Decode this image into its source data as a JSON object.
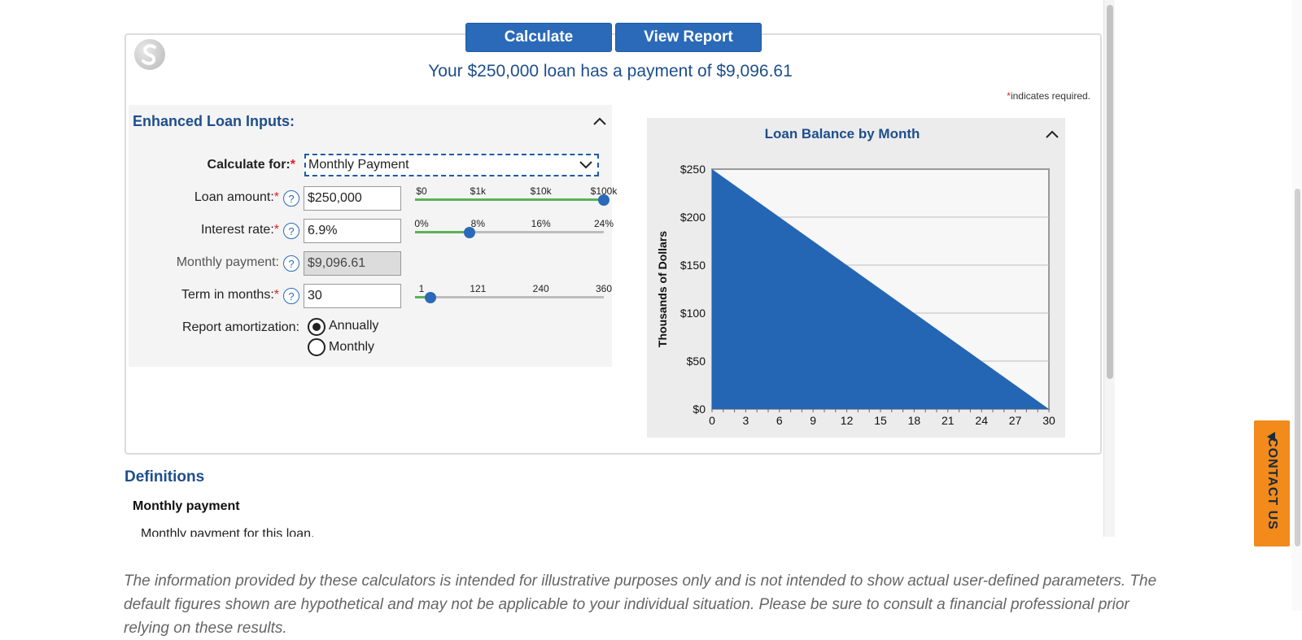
{
  "buttons": {
    "calculate": "Calculate",
    "view_report": "View Report"
  },
  "headline": "Your $250,000 loan has a payment of $9,096.61",
  "required_note": {
    "star": "*",
    "text": "indicates required."
  },
  "inputs": {
    "title": "Enhanced Loan Inputs:",
    "calculate_for": {
      "label": "Calculate for:",
      "star": "*",
      "value": "Monthly Payment"
    },
    "loan_amount": {
      "label": "Loan amount:",
      "star": "*",
      "value": "$250,000",
      "slider": {
        "ticks": [
          "$0",
          "$1k",
          "$10k",
          "$100k"
        ],
        "level": 1.0
      }
    },
    "interest_rate": {
      "label": "Interest rate:",
      "star": "*",
      "value": "6.9%",
      "slider": {
        "ticks": [
          "0%",
          "8%",
          "16%",
          "24%"
        ],
        "level": 0.2875
      }
    },
    "monthly_payment": {
      "label": "Monthly payment:",
      "value": "$9,096.61"
    },
    "term_months": {
      "label": "Term in months:",
      "star": "*",
      "value": "30",
      "slider": {
        "ticks": [
          "1",
          "121",
          "240",
          "360"
        ],
        "level": 0.081
      }
    },
    "report_amortization": {
      "label": "Report amortization:",
      "options": [
        "Annually",
        "Monthly"
      ],
      "selected": "Annually"
    },
    "help_glyph": "?"
  },
  "chart_data": {
    "type": "area",
    "title": "Loan Balance by Month",
    "xlabel": "",
    "ylabel": "Thousands of Dollars",
    "x": [
      0,
      30
    ],
    "y": [
      250,
      0
    ],
    "xlim": [
      0,
      30
    ],
    "ylim": [
      0,
      250
    ],
    "x_ticks": [
      "0",
      "3",
      "6",
      "9",
      "12",
      "15",
      "18",
      "21",
      "24",
      "27",
      "30"
    ],
    "y_ticks": [
      "$0",
      "$50",
      "$100",
      "$150",
      "$200",
      "$250"
    ],
    "grid": true,
    "fill_color": "#2466b4"
  },
  "definitions": {
    "title": "Definitions",
    "term": "Monthly payment",
    "text": "Monthly payment for this loan."
  },
  "disclaimer": "The information provided by these calculators is intended for illustrative purposes only and is not intended to show actual user-defined parameters. The default figures shown are hypothetical and may not be applicable to your individual situation.  Please be sure to consult a financial professional prior relying on these results.",
  "contact_tab": "CONTACT US",
  "colors": {
    "primary": "#2a6ab8",
    "heading": "#1e4e8c",
    "accent_orange": "#f28a1c",
    "slider_fill": "#5bb15b"
  }
}
